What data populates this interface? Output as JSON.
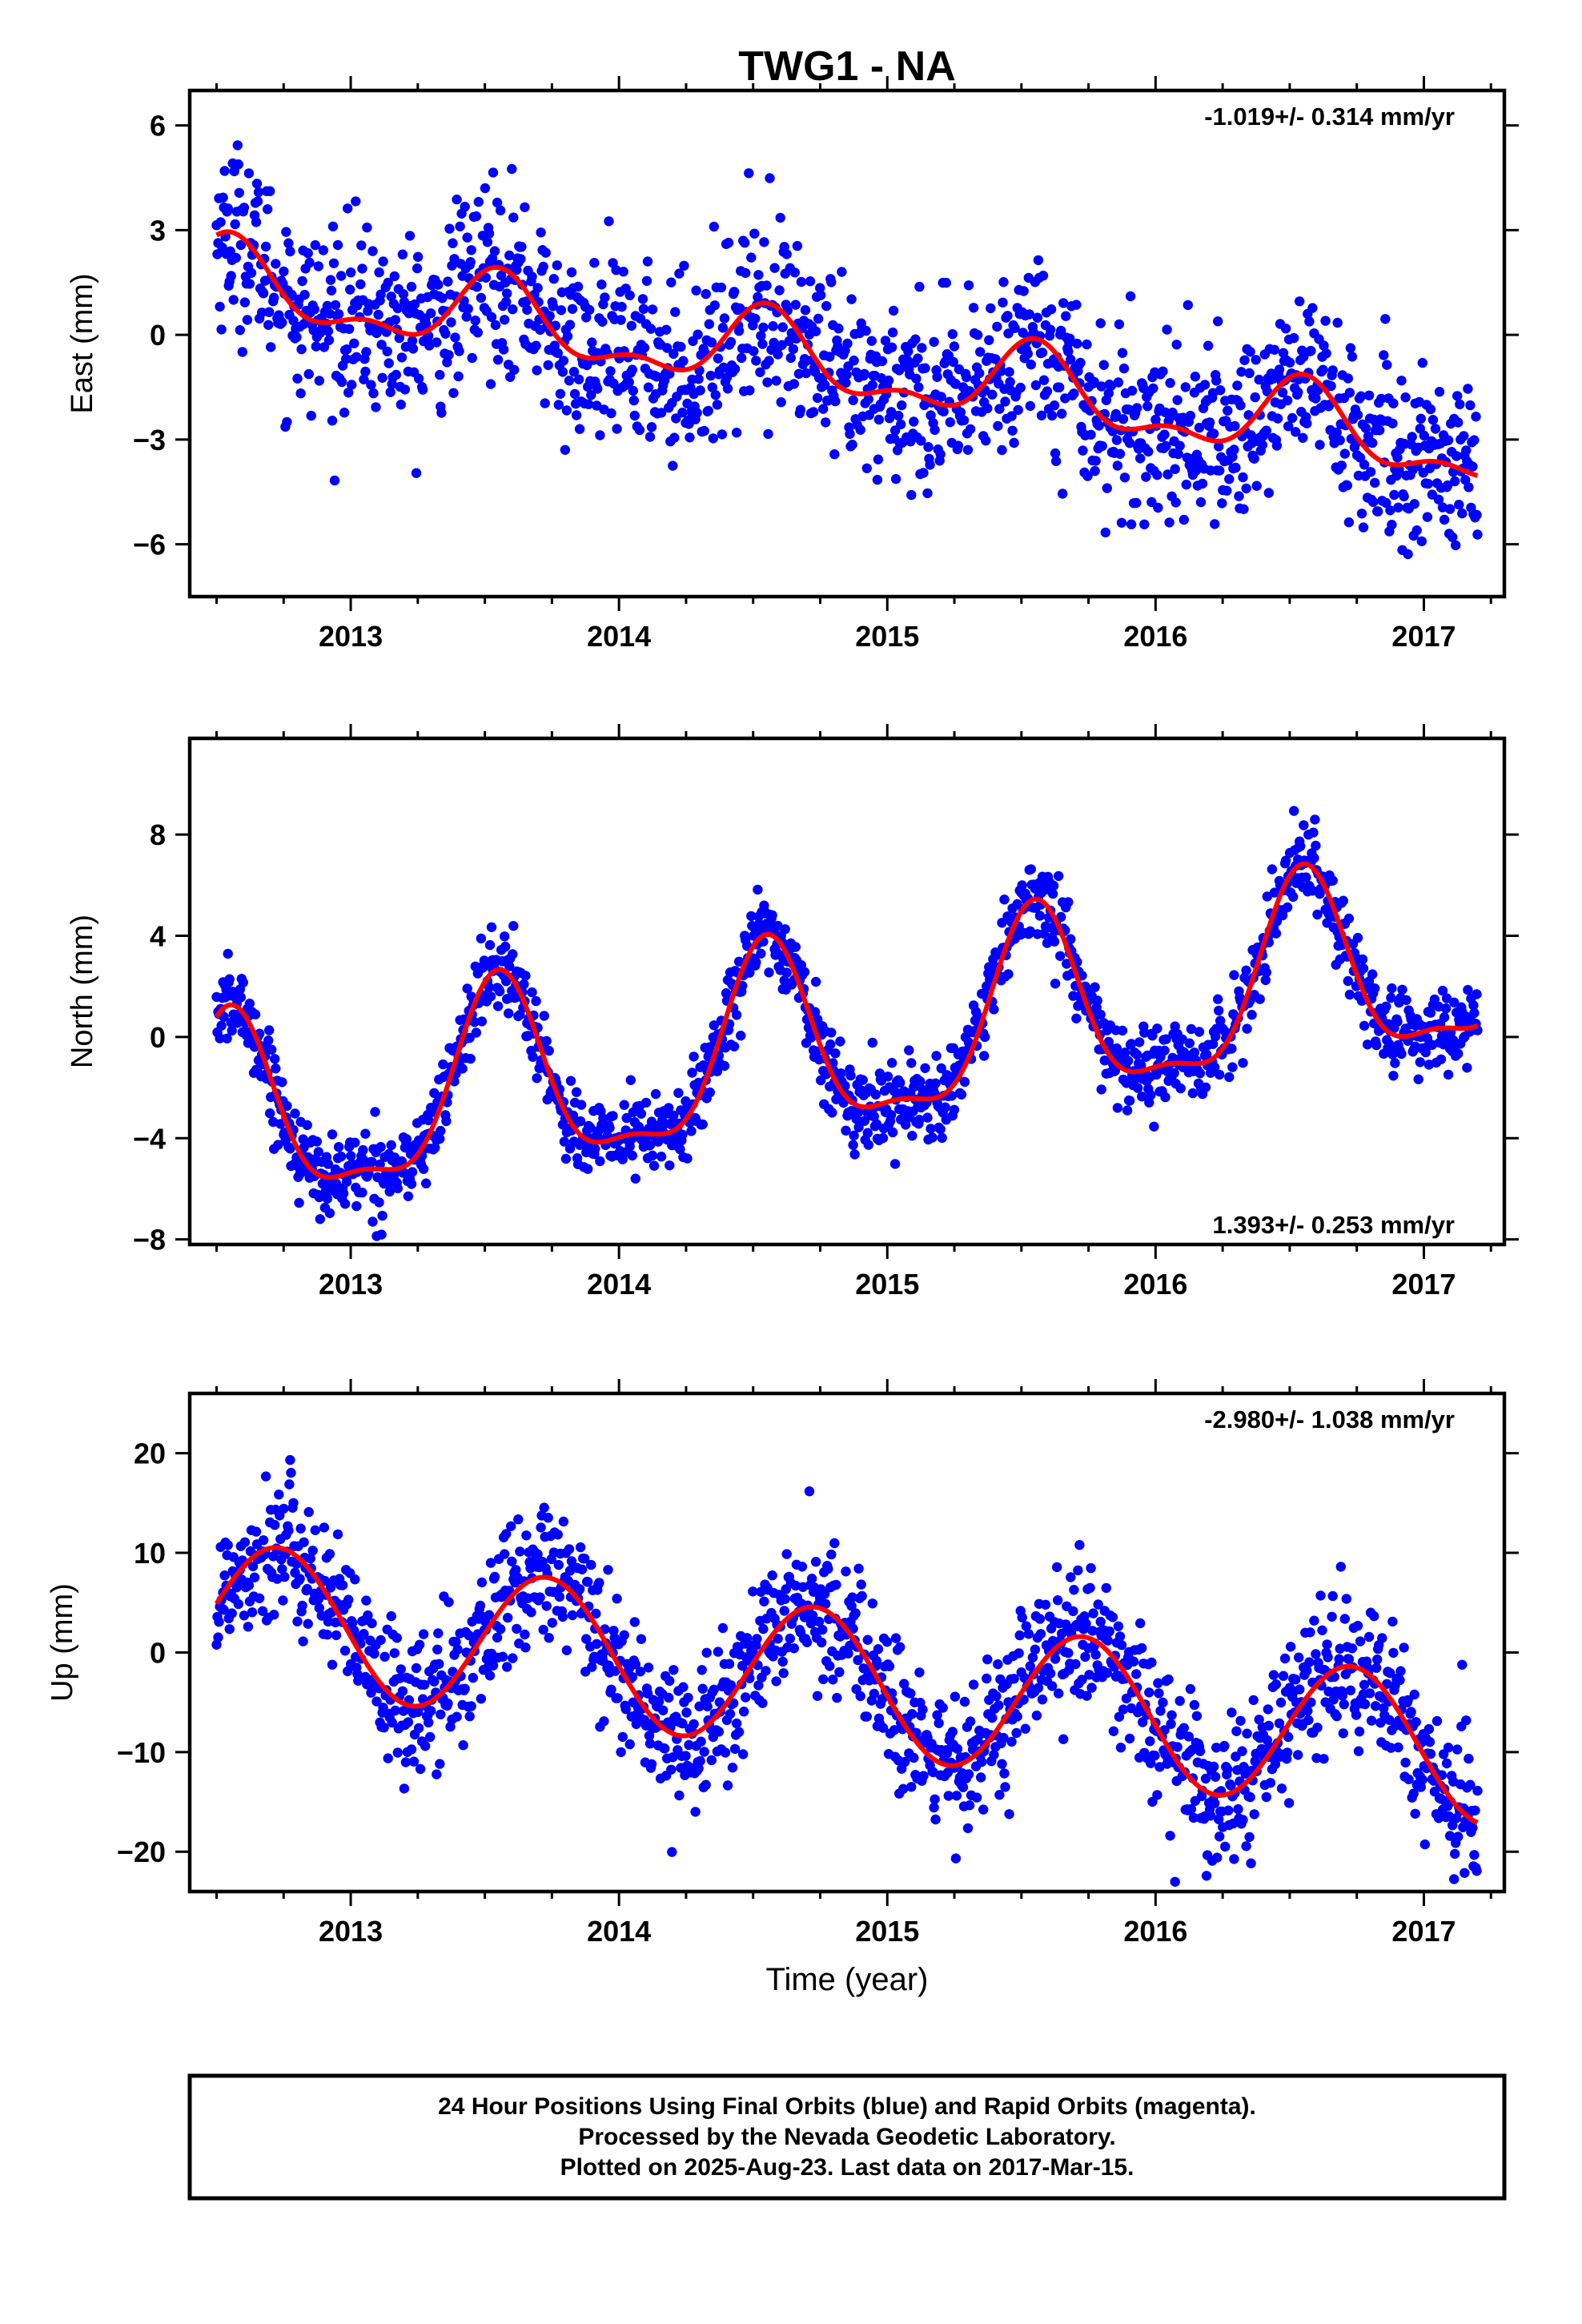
{
  "title": "TWG1 - NA",
  "xlabel": "Time (year)",
  "footer": {
    "line1": "24 Hour Positions Using Final Orbits (blue) and Rapid Orbits (magenta).",
    "line2": "Processed by the Nevada Geodetic Laboratory.",
    "line3": "Plotted on 2025-Aug-23. Last data on 2017-Mar-15."
  },
  "colors": {
    "points": "#0000ff",
    "fit": "#ff0000",
    "frame": "#000000"
  },
  "chart_data": [
    {
      "type": "scatter",
      "ylabel": "East (mm)",
      "rate_label": "-1.019+/- 0.314 mm/yr",
      "rate_position": "top-right",
      "xlim": [
        2012.4,
        2017.3
      ],
      "ylim": [
        -7.5,
        7.0
      ],
      "yticks": [
        -6,
        -3,
        0,
        3,
        6
      ],
      "xticks": [
        2013,
        2014,
        2015,
        2016,
        2017
      ],
      "start_year": 2012.5,
      "end_year": 2017.2,
      "fit_model": {
        "intercept": 1.5,
        "rate": -1.019,
        "annual_amp": 1.0,
        "annual_peak": 0.55,
        "semiannual_amp": 0.5,
        "semiannual_peak": 0.05
      },
      "scatter_sd": 1.3,
      "series": [
        {
          "label": "24-hour positions (final orbits)",
          "kind": "points",
          "color": "#0000ff"
        },
        {
          "label": "model fit",
          "kind": "line",
          "color": "#ff0000"
        }
      ]
    },
    {
      "type": "scatter",
      "ylabel": "North (mm)",
      "rate_label": "1.393+/- 0.253 mm/yr",
      "rate_position": "bottom-right",
      "xlim": [
        2012.4,
        2017.3
      ],
      "ylim": [
        -8.2,
        11.8
      ],
      "yticks": [
        -8,
        -4,
        0,
        4,
        8
      ],
      "xticks": [
        2013,
        2014,
        2015,
        2016,
        2017
      ],
      "start_year": 2012.5,
      "end_year": 2017.2,
      "fit_model": {
        "intercept": -3.6,
        "rate": 1.393,
        "annual_amp": 3.6,
        "annual_peak": 0.55,
        "semiannual_amp": 1.2,
        "semiannual_peak": 0.05
      },
      "scatter_sd": 0.8,
      "series": [
        {
          "label": "24-hour positions (final orbits)",
          "kind": "points",
          "color": "#0000ff"
        },
        {
          "label": "model fit",
          "kind": "line",
          "color": "#ff0000"
        }
      ]
    },
    {
      "type": "scatter",
      "ylabel": "Up (mm)",
      "rate_label": "-2.980+/- 1.038 mm/yr",
      "rate_position": "top-right",
      "xlim": [
        2012.4,
        2017.3
      ],
      "ylim": [
        -24.0,
        26.0
      ],
      "yticks": [
        -20,
        -10,
        0,
        10,
        20
      ],
      "xticks": [
        2013,
        2014,
        2015,
        2016,
        2017
      ],
      "start_year": 2012.5,
      "end_year": 2017.2,
      "fit_model": {
        "intercept": 4.0,
        "rate": -2.98,
        "annual_amp": 7.2,
        "annual_peak": 0.73,
        "semiannual_amp": 0.0,
        "semiannual_peak": 0.0
      },
      "scatter_sd": 3.6,
      "series": [
        {
          "label": "24-hour positions (final orbits)",
          "kind": "points",
          "color": "#0000ff"
        },
        {
          "label": "model fit",
          "kind": "line",
          "color": "#ff0000"
        }
      ]
    }
  ]
}
